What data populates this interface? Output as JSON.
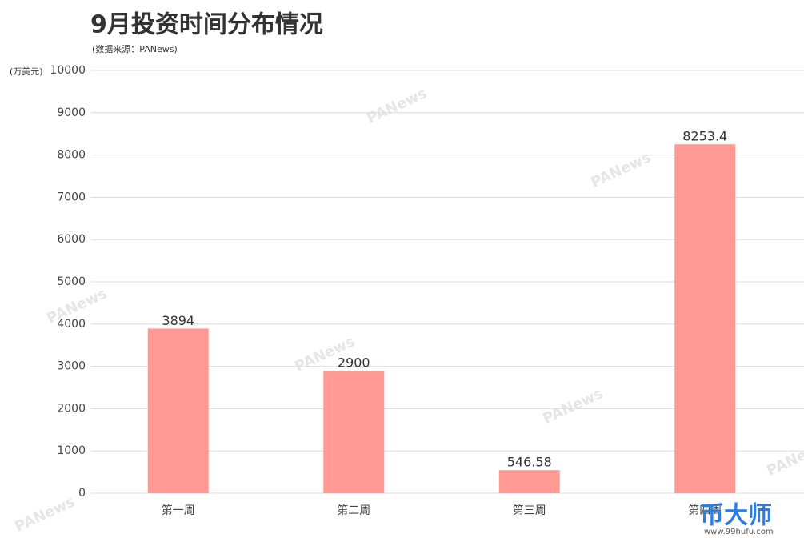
{
  "chart_data": {
    "type": "bar",
    "title": "9月投资时间分布情况",
    "subtitle": "(数据来源：PANews)",
    "y_label": "(万美元)",
    "categories": [
      "第一周",
      "第二周",
      "第三周",
      "第四周"
    ],
    "values": [
      3894,
      2900,
      546.58,
      8253.4
    ],
    "color": "#ff9a94",
    "ylim": [
      0,
      10000
    ],
    "yticks": [
      0,
      1000,
      2000,
      3000,
      4000,
      5000,
      6000,
      7000,
      8000,
      9000,
      10000
    ],
    "grid": true,
    "watermark": "PANews",
    "logo_text": "币大师",
    "logo_url": "www.99hufu.com"
  }
}
